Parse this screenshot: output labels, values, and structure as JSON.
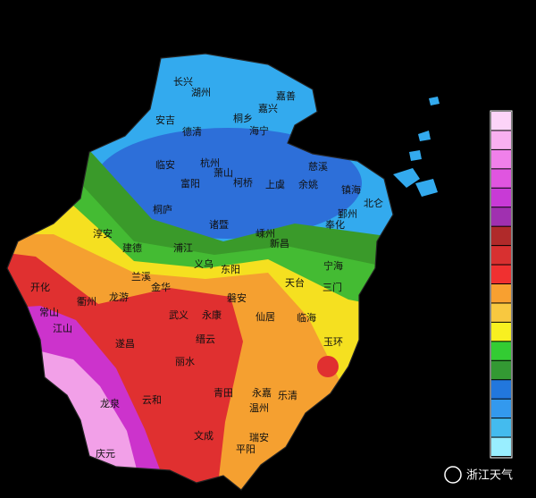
{
  "map": {
    "labels": [
      "长兴",
      "湖州",
      "嘉善",
      "嘉兴",
      "安吉",
      "桐乡",
      "海宁",
      "德清",
      "临安",
      "杭州",
      "萧山",
      "富阳",
      "柯桥",
      "上虞",
      "余姚",
      "慈溪",
      "镇海",
      "北仑",
      "鄞州",
      "奉化",
      "桐庐",
      "诸暨",
      "嵊州",
      "新昌",
      "淳安",
      "建德",
      "浦江",
      "义乌",
      "东阳",
      "宁海",
      "天台",
      "三门",
      "开化",
      "衢州",
      "龙游",
      "兰溪",
      "金华",
      "磐安",
      "仙居",
      "临海",
      "江山",
      "常山",
      "遂昌",
      "武义",
      "永康",
      "缙云",
      "丽水",
      "玉环",
      "龙泉",
      "云和",
      "青田",
      "永嘉",
      "温州",
      "乐清",
      "庆元",
      "文成",
      "瑞安",
      "平阳"
    ]
  },
  "legend": {
    "colors": [
      "#fcd4f8",
      "#f8b0f0",
      "#f080ea",
      "#e055e0",
      "#c83ad6",
      "#a030b0",
      "#b02a2a",
      "#d83030",
      "#f03030",
      "#f8a030",
      "#f8c840",
      "#f8f020",
      "#33cc33",
      "#339933",
      "#2277dd",
      "#3399ee",
      "#44bbee",
      "#99eeff"
    ]
  },
  "watermark": "浙江天气"
}
